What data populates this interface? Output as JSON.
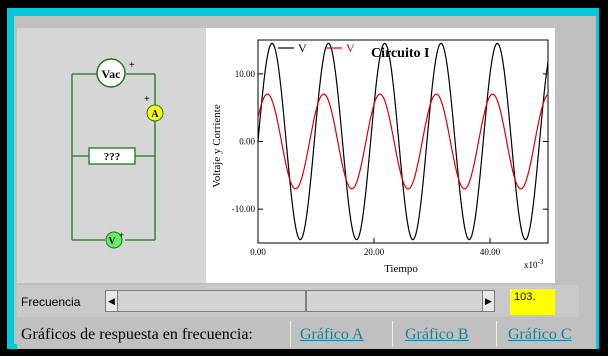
{
  "circuit": {
    "source_label": "Vac",
    "ammeter_label": "A",
    "unknown_label": "???",
    "voltmeter_label": "V",
    "plus_sign": "+"
  },
  "chart_data": {
    "type": "line",
    "title": "Circuito I",
    "xlabel": "Tiempo",
    "ylabel": "Voltaje y Corriente",
    "x_multiplier_label": "x10",
    "x_multiplier_exp": "-3",
    "xlim": [
      0,
      0.05
    ],
    "ylim": [
      -15,
      15
    ],
    "xticks": [
      0,
      0.02,
      0.04
    ],
    "xtick_labels": [
      "0.00",
      "20.00",
      "40.00"
    ],
    "yticks": [
      10,
      0,
      -10
    ],
    "ytick_labels": [
      "10.00",
      "0.00",
      "-10.00"
    ],
    "series": [
      {
        "name": "V",
        "color": "#000000",
        "amplitude": 14.5,
        "frequency_hz": 103,
        "phase_deg": 0
      },
      {
        "name": "V",
        "color": "#e00000",
        "amplitude": 7.0,
        "frequency_hz": 103,
        "phase_deg": 30
      }
    ]
  },
  "controls": {
    "frequency_label": "Frecuencia",
    "frequency_value": "103.",
    "scroll_left": "◀",
    "scroll_right": "▶"
  },
  "response": {
    "label": "Gráficos de respuesta en frecuencia:",
    "links": [
      "Gráfico A",
      "Gráfico B",
      "Gráfico C"
    ]
  },
  "colors": {
    "frame_cyan": "#00c8dc",
    "wire_green": "#1a7a1a",
    "meter_yellow": "#ffff00",
    "voltmeter_green": "#66ee66",
    "link_teal": "#1a7f96"
  }
}
